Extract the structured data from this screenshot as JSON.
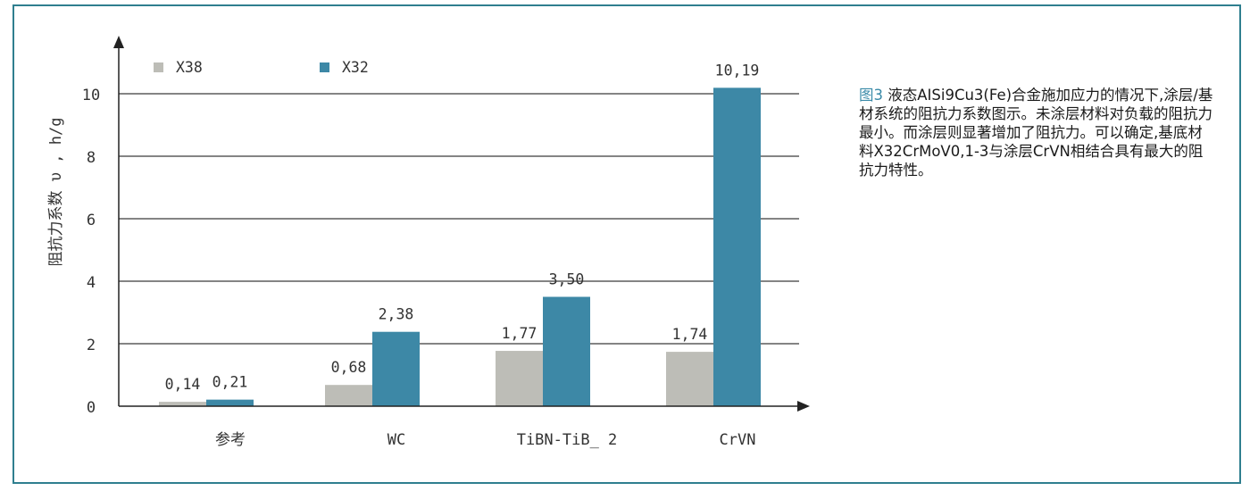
{
  "chart_data": {
    "type": "bar",
    "categories": [
      "参考",
      "WC",
      "TiBN-TiB_ 2",
      "CrVN"
    ],
    "series": [
      {
        "name": "X38",
        "color": "#bdbdb7",
        "values": [
          0.14,
          0.68,
          1.77,
          1.74
        ]
      },
      {
        "name": "X32",
        "color": "#3d88a6",
        "values": [
          0.21,
          2.38,
          3.5,
          10.19
        ]
      }
    ],
    "data_labels": [
      [
        "0,14",
        "0,68",
        "1,77",
        "1,74"
      ],
      [
        "0,21",
        "2,38",
        "3,50",
        "10,19"
      ]
    ],
    "ylabel": "阻抗力系数 υ , h/g",
    "yticks": [
      "0",
      "2",
      "4",
      "6",
      "8",
      "10"
    ],
    "ylim": [
      0,
      12
    ],
    "grid": true,
    "legend": "top-left"
  },
  "caption": {
    "figure_number": "图3",
    "text": " 液态AISi9Cu3(Fe)合金施加应力的情况下,涂层/基材系统的阻抗力系数图示。未涂层材料对负载的阻抗力最小。而涂层则显著增加了阻抗力。可以确定,基底材料X32CrMoV0,1-3与涂层CrVN相结合具有最大的阻抗力特性。"
  },
  "colors": {
    "frame": "#2f7f8f",
    "x38": "#bdbdb7",
    "x32": "#3d88a6"
  }
}
